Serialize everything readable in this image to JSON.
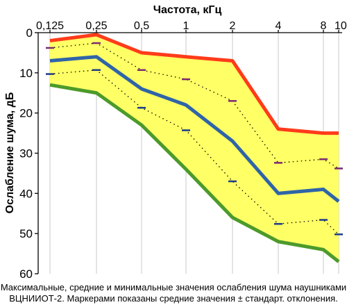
{
  "chart_data": {
    "type": "line",
    "title": "Частота, кГц",
    "xlabel": "Частота, кГц",
    "ylabel": "Ослабление шума, дБ",
    "x_ticks": [
      "0,125",
      "0,25",
      "0,5",
      "1",
      "2",
      "4",
      "8",
      "10"
    ],
    "y_ticks": [
      "0",
      "10",
      "20",
      "30",
      "40",
      "50",
      "60"
    ],
    "ylim": [
      0,
      60
    ],
    "y_inverted": true,
    "grid": "vertical",
    "band_color": "#ffff66",
    "series": [
      {
        "role": "max",
        "color": "#ff3b1a",
        "x": [
          0.125,
          0.25,
          0.5,
          1,
          2,
          4,
          8,
          10
        ],
        "y": [
          2,
          0.5,
          5,
          6,
          7,
          24,
          25,
          25
        ]
      },
      {
        "role": "mean",
        "color": "#2f64a8",
        "x": [
          0.125,
          0.25,
          0.5,
          1,
          2,
          4,
          8,
          10
        ],
        "y": [
          7,
          6,
          14,
          18,
          27,
          40,
          39,
          42
        ]
      },
      {
        "role": "min",
        "color": "#4c9a2a",
        "x": [
          0.125,
          0.25,
          0.5,
          1,
          2,
          4,
          8,
          10
        ],
        "y": [
          13,
          15,
          23,
          34,
          46,
          52,
          54,
          57
        ]
      },
      {
        "role": "mean-plus-sd",
        "style": "dotted",
        "x": [
          0.125,
          0.25,
          0.5,
          1,
          2,
          4,
          8,
          10
        ],
        "y": [
          3.8,
          2.6,
          9.3,
          11.6,
          17,
          32.4,
          31.5,
          33.8
        ]
      },
      {
        "role": "mean-minus-sd",
        "style": "dotted",
        "x": [
          0.125,
          0.25,
          0.5,
          1,
          2,
          4,
          8,
          10
        ],
        "y": [
          10.3,
          9.3,
          18.7,
          24.3,
          37,
          47.6,
          46.6,
          50.2
        ]
      }
    ],
    "markers_upper_color": "#7a2a70",
    "markers_lower_color": "#1c3b8c"
  },
  "caption": {
    "line1": "Максимальные, средние и минимальные значения ослабления шума наушниками",
    "line2": "ВЦНИИОТ-2. Маркерами показаны средние значения ± стандарт. отклонения."
  }
}
